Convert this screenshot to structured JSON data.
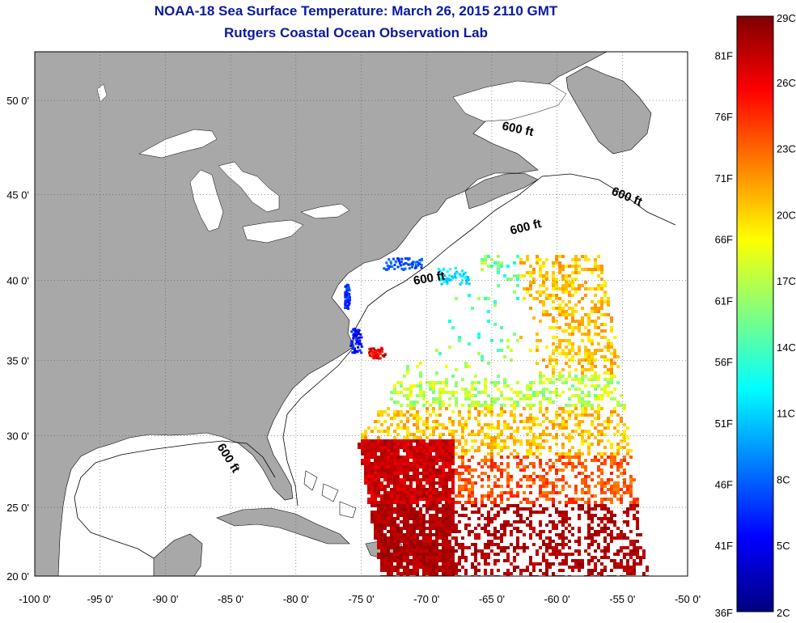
{
  "title": {
    "line1": "NOAA-18 Sea Surface Temperature:  March 26, 2015 2110 GMT",
    "line2": "Rutgers Coastal Ocean Observation Lab"
  },
  "map": {
    "lon_ticks": [
      "-100 0'",
      "-95 0'",
      "-90 0'",
      "-85 0'",
      "-80 0'",
      "-75 0'",
      "-70 0'",
      "-65 0'",
      "-60 0'",
      "-55 0'",
      "-50 0'"
    ],
    "lat_ticks": [
      "50 0'",
      "45 0'",
      "40 0'",
      "35 0'",
      "30 0'",
      "25 0'",
      "20 0'"
    ],
    "lon_values": [
      -100,
      -95,
      -90,
      -85,
      -80,
      -75,
      -70,
      -65,
      -60,
      -55,
      -50
    ],
    "lat_values": [
      50,
      45,
      40,
      35,
      30,
      25,
      20
    ],
    "isobath_label": "600 ft",
    "land_color": "#a8a8a8",
    "ocean_color": "#ffffff"
  },
  "colorbar": {
    "celsius_labels": [
      "29C",
      "26C",
      "23C",
      "20C",
      "17C",
      "14C",
      "11C",
      "8C",
      "5C",
      "2C"
    ],
    "fahrenheit_labels": [
      "81F",
      "76F",
      "71F",
      "66F",
      "61F",
      "56F",
      "51F",
      "46F",
      "41F",
      "36F"
    ],
    "celsius_values": [
      29,
      26,
      23,
      20,
      17,
      14,
      11,
      8,
      5,
      2
    ],
    "fahrenheit_values": [
      81,
      76,
      71,
      66,
      61,
      56,
      51,
      46,
      41,
      36
    ],
    "colors": [
      "#000080",
      "#0000ff",
      "#0080ff",
      "#00ffff",
      "#80ff80",
      "#ffff00",
      "#ff8000",
      "#ff0000",
      "#800000"
    ]
  }
}
